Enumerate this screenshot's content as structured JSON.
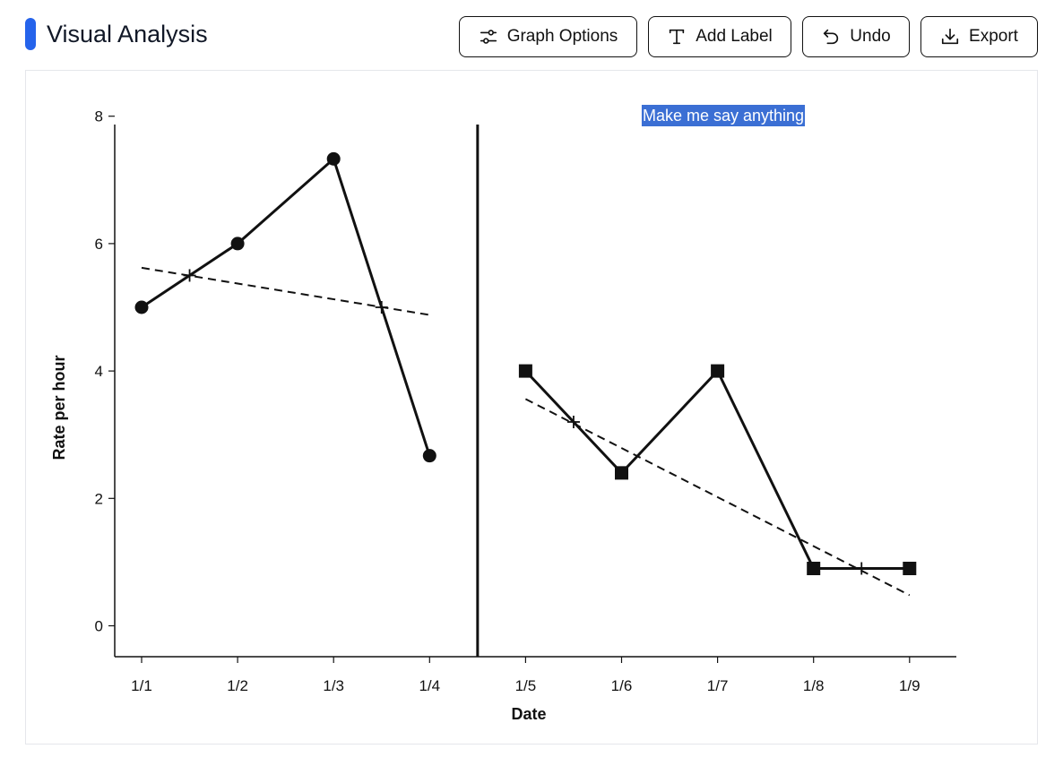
{
  "header": {
    "title": "Visual Analysis",
    "accent_color": "#2563eb",
    "buttons": {
      "graph_options": {
        "label": "Graph Options",
        "icon": "sliders-icon"
      },
      "add_label": {
        "label": "Add Label",
        "icon": "text-t-icon"
      },
      "undo": {
        "label": "Undo",
        "icon": "undo-arrow-icon"
      },
      "export": {
        "label": "Export",
        "icon": "download-icon"
      }
    }
  },
  "chart_data": {
    "type": "line",
    "xlabel": "Date",
    "ylabel": "Rate per hour",
    "categories": [
      "1/1",
      "1/2",
      "1/3",
      "1/4",
      "1/5",
      "1/6",
      "1/7",
      "1/8",
      "1/9"
    ],
    "yticks": [
      0,
      2,
      4,
      6,
      8
    ],
    "ylim": [
      -0.5,
      8
    ],
    "grid": false,
    "phase_change_between": [
      "1/4",
      "1/5"
    ],
    "annotation": {
      "text": "Make me say anything",
      "highlight_color": "#3b6fd4"
    },
    "series": [
      {
        "marker": "circle",
        "points": [
          {
            "x": "1/1",
            "y": 5.0
          },
          {
            "x": "1/2",
            "y": 6.0
          },
          {
            "x": "1/3",
            "y": 7.33
          },
          {
            "x": "1/4",
            "y": 2.67
          }
        ],
        "trend": {
          "from": {
            "x": "1/1",
            "y": 5.62
          },
          "to": {
            "x": "1/4",
            "y": 4.88
          },
          "crosses": [
            {
              "x": 1.5,
              "y": 5.5
            },
            {
              "x": 3.5,
              "y": 5.0
            }
          ]
        }
      },
      {
        "marker": "square",
        "points": [
          {
            "x": "1/5",
            "y": 4.0
          },
          {
            "x": "1/6",
            "y": 2.4
          },
          {
            "x": "1/7",
            "y": 4.0
          },
          {
            "x": "1/8",
            "y": 0.9
          },
          {
            "x": "1/9",
            "y": 0.9
          }
        ],
        "trend": {
          "from": {
            "x": "1/5",
            "y": 3.56
          },
          "to": {
            "x": "1/9",
            "y": 0.48
          },
          "crosses": [
            {
              "x": 5.5,
              "y": 3.2
            },
            {
              "x": 8.5,
              "y": 0.9
            }
          ]
        }
      }
    ]
  }
}
